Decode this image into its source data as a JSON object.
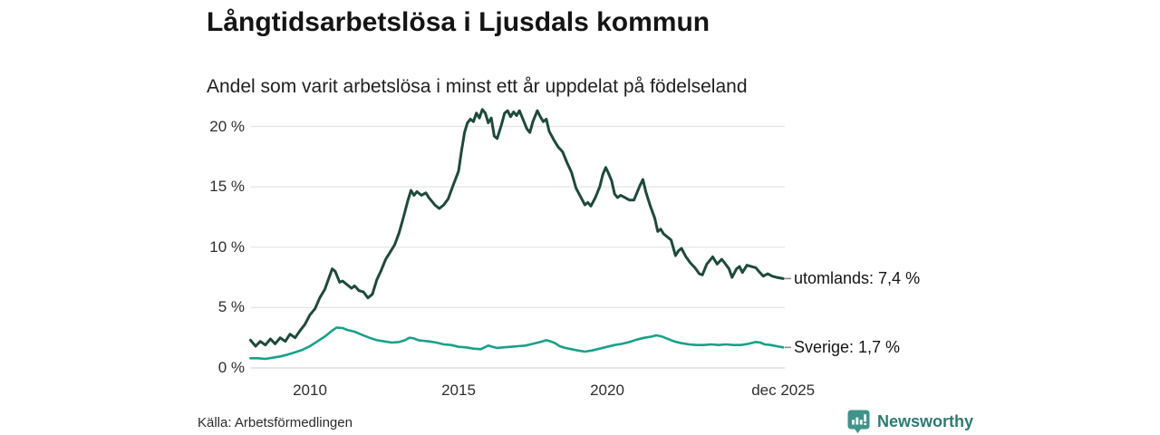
{
  "header": {
    "title": "Långtidsarbetslösa i Ljusdals kommun",
    "subtitle": "Andel som varit arbetslösa i minst ett år uppdelat på födelseland"
  },
  "footer": {
    "source": "Källa: Arbetsförmedlingen",
    "brand": "Newsworthy",
    "brand_color": "#2b7c71",
    "brand_icon": "newsworthy-bubble-barchart-icon",
    "brand_icon_color": "#3f9489"
  },
  "chart_data": {
    "type": "line",
    "title": "Långtidsarbetslösa i Ljusdals kommun",
    "subtitle": "Andel som varit arbetslösa i minst ett år uppdelat på födelseland",
    "grid": true,
    "legend_position": "end-of-line-labels",
    "x_range": [
      2008.0,
      2026.0
    ],
    "ylim": [
      0,
      22
    ],
    "y_ticks": [
      {
        "label": "0 %",
        "value": 0
      },
      {
        "label": "5 %",
        "value": 5
      },
      {
        "label": "10 %",
        "value": 10
      },
      {
        "label": "15 %",
        "value": 15
      },
      {
        "label": "20 %",
        "value": 20
      }
    ],
    "x_ticks": [
      {
        "label": "2010",
        "t": 2010.0
      },
      {
        "label": "2015",
        "t": 2015.0
      },
      {
        "label": "2020",
        "t": 2020.0
      },
      {
        "label": "dec 2025",
        "t": 2025.92
      }
    ],
    "gridline_color": "#e4e4e4",
    "zeroline_color": "#d6d6d6",
    "label_dash_color": "#8f8f8f",
    "series": [
      {
        "name": "utomlands",
        "end_label": "utomlands: 7,4 %",
        "last_value": 7.4,
        "color": "#1d4a3b",
        "width": 3,
        "points": [
          [
            2008.0,
            2.3
          ],
          [
            2008.17,
            1.8
          ],
          [
            2008.33,
            2.2
          ],
          [
            2008.5,
            1.9
          ],
          [
            2008.67,
            2.4
          ],
          [
            2008.83,
            2.0
          ],
          [
            2009.0,
            2.5
          ],
          [
            2009.17,
            2.2
          ],
          [
            2009.33,
            2.8
          ],
          [
            2009.5,
            2.5
          ],
          [
            2009.67,
            3.1
          ],
          [
            2009.83,
            3.6
          ],
          [
            2010.0,
            4.4
          ],
          [
            2010.17,
            4.9
          ],
          [
            2010.33,
            5.8
          ],
          [
            2010.5,
            6.5
          ],
          [
            2010.6,
            7.2
          ],
          [
            2010.75,
            8.2
          ],
          [
            2010.85,
            8.0
          ],
          [
            2011.0,
            7.1
          ],
          [
            2011.1,
            7.2
          ],
          [
            2011.25,
            6.9
          ],
          [
            2011.4,
            6.6
          ],
          [
            2011.5,
            6.8
          ],
          [
            2011.65,
            6.4
          ],
          [
            2011.8,
            6.3
          ],
          [
            2011.95,
            5.8
          ],
          [
            2012.1,
            6.1
          ],
          [
            2012.25,
            7.3
          ],
          [
            2012.4,
            8.1
          ],
          [
            2012.55,
            9.0
          ],
          [
            2012.7,
            9.6
          ],
          [
            2012.85,
            10.2
          ],
          [
            2013.0,
            11.2
          ],
          [
            2013.15,
            12.5
          ],
          [
            2013.3,
            13.9
          ],
          [
            2013.4,
            14.7
          ],
          [
            2013.5,
            14.3
          ],
          [
            2013.6,
            14.6
          ],
          [
            2013.75,
            14.3
          ],
          [
            2013.9,
            14.5
          ],
          [
            2014.0,
            14.1
          ],
          [
            2014.2,
            13.5
          ],
          [
            2014.35,
            13.2
          ],
          [
            2014.5,
            13.5
          ],
          [
            2014.65,
            14.0
          ],
          [
            2014.8,
            15.0
          ],
          [
            2015.0,
            16.3
          ],
          [
            2015.1,
            18.0
          ],
          [
            2015.2,
            19.5
          ],
          [
            2015.3,
            20.3
          ],
          [
            2015.4,
            20.6
          ],
          [
            2015.5,
            20.4
          ],
          [
            2015.6,
            21.1
          ],
          [
            2015.7,
            20.7
          ],
          [
            2015.8,
            21.4
          ],
          [
            2015.9,
            21.1
          ],
          [
            2016.0,
            20.3
          ],
          [
            2016.1,
            20.7
          ],
          [
            2016.2,
            19.2
          ],
          [
            2016.3,
            19.0
          ],
          [
            2016.45,
            20.2
          ],
          [
            2016.55,
            21.1
          ],
          [
            2016.65,
            21.3
          ],
          [
            2016.75,
            20.8
          ],
          [
            2016.85,
            21.2
          ],
          [
            2016.95,
            20.9
          ],
          [
            2017.05,
            21.3
          ],
          [
            2017.15,
            20.7
          ],
          [
            2017.3,
            19.8
          ],
          [
            2017.4,
            19.5
          ],
          [
            2017.5,
            20.4
          ],
          [
            2017.65,
            21.3
          ],
          [
            2017.75,
            20.8
          ],
          [
            2017.85,
            20.4
          ],
          [
            2017.95,
            20.6
          ],
          [
            2018.05,
            19.6
          ],
          [
            2018.2,
            18.9
          ],
          [
            2018.35,
            18.3
          ],
          [
            2018.5,
            17.9
          ],
          [
            2018.65,
            17.0
          ],
          [
            2018.8,
            16.2
          ],
          [
            2018.95,
            14.9
          ],
          [
            2019.1,
            14.2
          ],
          [
            2019.25,
            13.5
          ],
          [
            2019.35,
            13.7
          ],
          [
            2019.45,
            13.4
          ],
          [
            2019.6,
            14.1
          ],
          [
            2019.75,
            15.0
          ],
          [
            2019.85,
            16.0
          ],
          [
            2019.95,
            16.6
          ],
          [
            2020.05,
            16.1
          ],
          [
            2020.15,
            15.5
          ],
          [
            2020.25,
            14.4
          ],
          [
            2020.35,
            14.1
          ],
          [
            2020.45,
            14.3
          ],
          [
            2020.6,
            14.1
          ],
          [
            2020.75,
            13.9
          ],
          [
            2020.9,
            13.9
          ],
          [
            2021.0,
            14.5
          ],
          [
            2021.1,
            15.1
          ],
          [
            2021.2,
            15.6
          ],
          [
            2021.3,
            14.6
          ],
          [
            2021.45,
            13.4
          ],
          [
            2021.6,
            12.4
          ],
          [
            2021.7,
            11.3
          ],
          [
            2021.8,
            11.5
          ],
          [
            2021.9,
            11.1
          ],
          [
            2022.0,
            10.9
          ],
          [
            2022.15,
            10.6
          ],
          [
            2022.3,
            9.3
          ],
          [
            2022.4,
            9.7
          ],
          [
            2022.5,
            9.9
          ],
          [
            2022.65,
            9.2
          ],
          [
            2022.8,
            8.7
          ],
          [
            2022.95,
            8.3
          ],
          [
            2023.1,
            7.8
          ],
          [
            2023.2,
            7.7
          ],
          [
            2023.35,
            8.6
          ],
          [
            2023.45,
            8.9
          ],
          [
            2023.55,
            9.2
          ],
          [
            2023.7,
            8.6
          ],
          [
            2023.85,
            9.0
          ],
          [
            2023.95,
            8.7
          ],
          [
            2024.1,
            8.2
          ],
          [
            2024.2,
            7.5
          ],
          [
            2024.35,
            8.2
          ],
          [
            2024.45,
            8.4
          ],
          [
            2024.55,
            7.9
          ],
          [
            2024.7,
            8.5
          ],
          [
            2024.85,
            8.4
          ],
          [
            2025.0,
            8.3
          ],
          [
            2025.1,
            8.0
          ],
          [
            2025.25,
            7.6
          ],
          [
            2025.4,
            7.8
          ],
          [
            2025.55,
            7.6
          ],
          [
            2025.7,
            7.5
          ],
          [
            2025.92,
            7.4
          ]
        ]
      },
      {
        "name": "Sverige",
        "end_label": "Sverige: 1,7 %",
        "last_value": 1.7,
        "color": "#18a189",
        "width": 2.6,
        "points": [
          [
            2008.0,
            0.8
          ],
          [
            2008.25,
            0.8
          ],
          [
            2008.5,
            0.75
          ],
          [
            2008.75,
            0.85
          ],
          [
            2009.0,
            0.95
          ],
          [
            2009.25,
            1.1
          ],
          [
            2009.5,
            1.3
          ],
          [
            2009.75,
            1.5
          ],
          [
            2010.0,
            1.8
          ],
          [
            2010.25,
            2.2
          ],
          [
            2010.5,
            2.6
          ],
          [
            2010.75,
            3.1
          ],
          [
            2010.9,
            3.35
          ],
          [
            2011.1,
            3.3
          ],
          [
            2011.25,
            3.15
          ],
          [
            2011.5,
            3.0
          ],
          [
            2011.75,
            2.75
          ],
          [
            2012.0,
            2.5
          ],
          [
            2012.25,
            2.3
          ],
          [
            2012.5,
            2.2
          ],
          [
            2012.75,
            2.1
          ],
          [
            2013.0,
            2.15
          ],
          [
            2013.2,
            2.3
          ],
          [
            2013.35,
            2.5
          ],
          [
            2013.5,
            2.45
          ],
          [
            2013.65,
            2.3
          ],
          [
            2013.8,
            2.25
          ],
          [
            2014.0,
            2.2
          ],
          [
            2014.25,
            2.1
          ],
          [
            2014.5,
            1.95
          ],
          [
            2014.75,
            1.9
          ],
          [
            2015.0,
            1.75
          ],
          [
            2015.25,
            1.7
          ],
          [
            2015.5,
            1.6
          ],
          [
            2015.75,
            1.55
          ],
          [
            2016.0,
            1.85
          ],
          [
            2016.15,
            1.75
          ],
          [
            2016.3,
            1.65
          ],
          [
            2016.5,
            1.7
          ],
          [
            2016.75,
            1.75
          ],
          [
            2017.0,
            1.8
          ],
          [
            2017.25,
            1.85
          ],
          [
            2017.5,
            2.0
          ],
          [
            2017.75,
            2.15
          ],
          [
            2017.95,
            2.3
          ],
          [
            2018.1,
            2.2
          ],
          [
            2018.25,
            2.05
          ],
          [
            2018.4,
            1.8
          ],
          [
            2018.6,
            1.65
          ],
          [
            2018.8,
            1.55
          ],
          [
            2019.0,
            1.45
          ],
          [
            2019.25,
            1.35
          ],
          [
            2019.5,
            1.45
          ],
          [
            2019.75,
            1.6
          ],
          [
            2020.0,
            1.75
          ],
          [
            2020.25,
            1.9
          ],
          [
            2020.5,
            2.0
          ],
          [
            2020.75,
            2.15
          ],
          [
            2021.0,
            2.35
          ],
          [
            2021.25,
            2.5
          ],
          [
            2021.5,
            2.6
          ],
          [
            2021.65,
            2.7
          ],
          [
            2021.85,
            2.6
          ],
          [
            2022.0,
            2.45
          ],
          [
            2022.25,
            2.2
          ],
          [
            2022.5,
            2.05
          ],
          [
            2022.75,
            1.95
          ],
          [
            2023.0,
            1.9
          ],
          [
            2023.25,
            1.9
          ],
          [
            2023.5,
            1.95
          ],
          [
            2023.75,
            1.9
          ],
          [
            2024.0,
            1.95
          ],
          [
            2024.25,
            1.9
          ],
          [
            2024.5,
            1.9
          ],
          [
            2024.75,
            2.0
          ],
          [
            2025.0,
            2.15
          ],
          [
            2025.15,
            2.1
          ],
          [
            2025.3,
            1.95
          ],
          [
            2025.5,
            1.9
          ],
          [
            2025.7,
            1.8
          ],
          [
            2025.92,
            1.7
          ]
        ]
      }
    ]
  }
}
